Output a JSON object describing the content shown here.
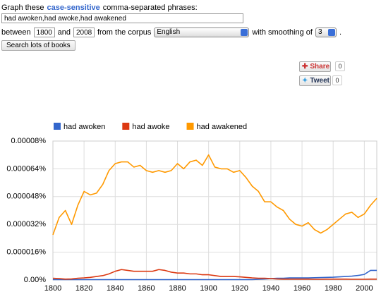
{
  "form": {
    "prompt_start": "Graph these",
    "prompt_emphasis": "case-sensitive",
    "prompt_end": "comma-separated phrases:",
    "query": "had awoken,had awoke,had awakened",
    "between_label": "between",
    "start_year": "1800",
    "and_label": "and",
    "end_year": "2008",
    "corpus_label": "from the corpus",
    "corpus": "English",
    "smoothing_label": "with smoothing of",
    "smoothing": "3",
    "end_punct": ".",
    "search_button": "Search lots of books",
    "share_label": "Share",
    "share_count": "0",
    "tweet_label": "Tweet",
    "tweet_count": "0"
  },
  "chart_data": {
    "type": "line",
    "x": [
      1800,
      1804,
      1808,
      1812,
      1816,
      1820,
      1824,
      1828,
      1832,
      1836,
      1840,
      1844,
      1848,
      1852,
      1856,
      1860,
      1864,
      1868,
      1872,
      1876,
      1880,
      1884,
      1888,
      1892,
      1896,
      1900,
      1904,
      1908,
      1912,
      1916,
      1920,
      1924,
      1928,
      1932,
      1936,
      1940,
      1944,
      1948,
      1952,
      1956,
      1960,
      1964,
      1968,
      1972,
      1976,
      1980,
      1984,
      1988,
      1992,
      1996,
      2000,
      2004,
      2008
    ],
    "series": [
      {
        "name": "had awoken",
        "color": "#3366cc",
        "values": [
          2e-07,
          2e-07,
          2e-07,
          2e-07,
          2e-07,
          2e-07,
          2e-07,
          2e-07,
          2e-07,
          2e-07,
          2e-07,
          2e-07,
          2e-07,
          2e-07,
          2e-07,
          2e-07,
          2e-07,
          2e-07,
          2e-07,
          2e-07,
          2e-07,
          2e-07,
          2e-07,
          2e-07,
          2e-07,
          2e-07,
          2e-07,
          2e-07,
          2e-07,
          2e-07,
          2e-07,
          2e-07,
          2e-07,
          4e-07,
          6e-07,
          8e-07,
          1e-06,
          1e-06,
          1.2e-06,
          1.2e-06,
          1.2e-06,
          1.2e-06,
          1.3e-06,
          1.4e-06,
          1.5e-06,
          1.6e-06,
          1.8e-06,
          2e-06,
          2.2e-06,
          2.6e-06,
          3.2e-06,
          5.5e-06,
          5.5e-06
        ]
      },
      {
        "name": "had awoke",
        "color": "#dc3912",
        "values": [
          1e-06,
          8e-07,
          5e-07,
          6e-07,
          1e-06,
          1.2e-06,
          1.5e-06,
          2e-06,
          2.5e-06,
          3.5e-06,
          5e-06,
          6e-06,
          5.5e-06,
          5e-06,
          5e-06,
          5e-06,
          5e-06,
          6e-06,
          5.5e-06,
          4.5e-06,
          4e-06,
          4e-06,
          3.5e-06,
          3.5e-06,
          3e-06,
          3e-06,
          2.5e-06,
          2e-06,
          2e-06,
          2e-06,
          1.8e-06,
          1.5e-06,
          1.2e-06,
          1e-06,
          1e-06,
          8e-07,
          6e-07,
          5e-07,
          5e-07,
          5e-07,
          5e-07,
          5e-07,
          4e-07,
          4e-07,
          5e-07,
          5e-07,
          5e-07,
          5e-07,
          4e-07,
          4e-07,
          4e-07,
          5e-07,
          5e-07
        ]
      },
      {
        "name": "had awakened",
        "color": "#ff9900",
        "values": [
          2.6e-05,
          3.6e-05,
          4e-05,
          3.2e-05,
          4.3e-05,
          5.1e-05,
          4.9e-05,
          5e-05,
          5.5e-05,
          6.3e-05,
          6.7e-05,
          6.8e-05,
          6.8e-05,
          6.5e-05,
          6.6e-05,
          6.3e-05,
          6.2e-05,
          6.3e-05,
          6.2e-05,
          6.3e-05,
          6.7e-05,
          6.4e-05,
          6.8e-05,
          6.9e-05,
          6.6e-05,
          7.2e-05,
          6.5e-05,
          6.4e-05,
          6.4e-05,
          6.2e-05,
          6.3e-05,
          5.9e-05,
          5.4e-05,
          5.1e-05,
          4.5e-05,
          4.5e-05,
          4.2e-05,
          4e-05,
          3.5e-05,
          3.2e-05,
          3.1e-05,
          3.3e-05,
          2.9e-05,
          2.7e-05,
          2.9e-05,
          3.2e-05,
          3.5e-05,
          3.8e-05,
          3.9e-05,
          3.6e-05,
          3.8e-05,
          4.3e-05,
          4.7e-05
        ]
      }
    ],
    "xlim": [
      1800,
      2008
    ],
    "xticks": [
      1800,
      1820,
      1840,
      1860,
      1880,
      1900,
      1920,
      1940,
      1960,
      1980,
      2000
    ],
    "ylim": [
      0,
      8e-05
    ],
    "yticks": [
      {
        "value": 0,
        "label": "0.00%"
      },
      {
        "value": 1.6e-05,
        "label": "0.000016%"
      },
      {
        "value": 3.2e-05,
        "label": "0.000032%"
      },
      {
        "value": 4.8e-05,
        "label": "0.000048%"
      },
      {
        "value": 6.4e-05,
        "label": "0.000064%"
      },
      {
        "value": 8e-05,
        "label": "0.00008%"
      }
    ],
    "grid": true
  }
}
